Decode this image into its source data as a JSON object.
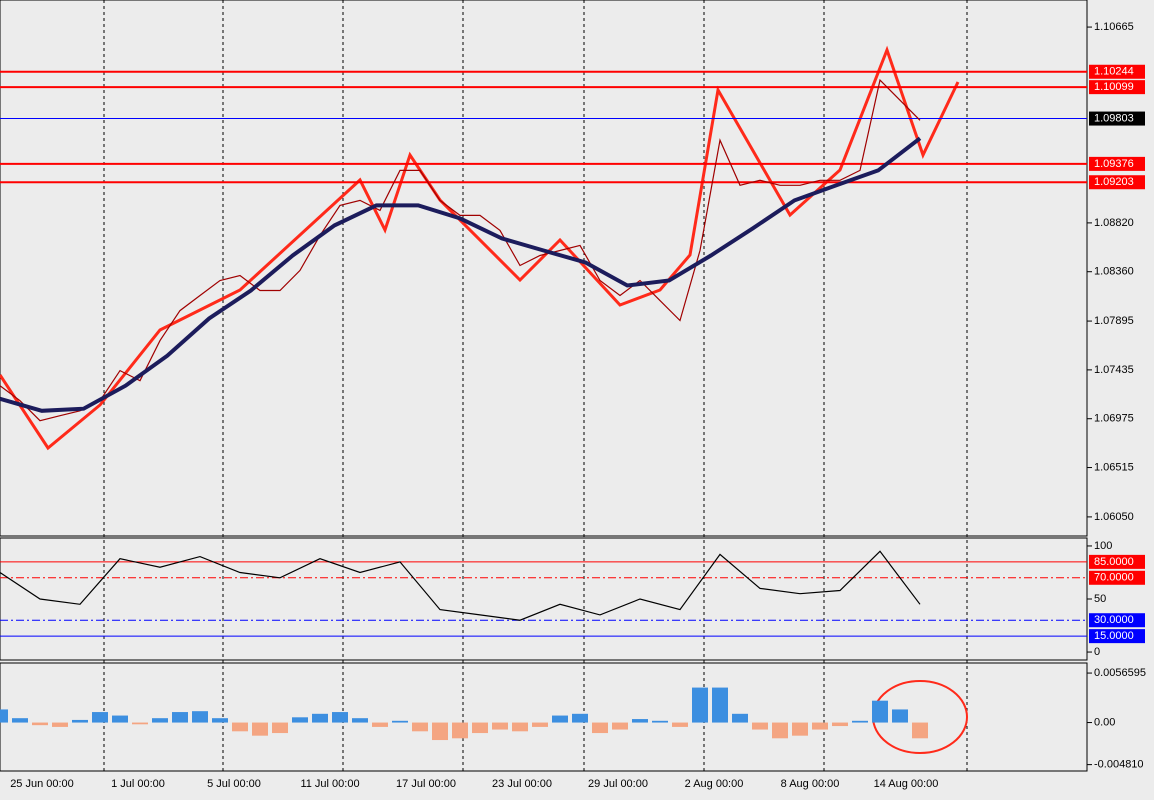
{
  "chart_data": [
    {
      "type": "line",
      "ylim": [
        1.0587,
        1.1092
      ],
      "yticks": [
        1.10665,
        {
          "value": 1.0882,
          "label": "1.08820"
        },
        {
          "value": 1.0836,
          "label": "1.08360"
        },
        1.07895,
        1.07435,
        1.06975,
        1.06515,
        {
          "value": 1.0605,
          "label": "1.06050"
        }
      ],
      "x_labels": [
        "25 Jun 00:00",
        "1 Jul 00:00",
        "5 Jul 00:00",
        "11 Jul 00:00",
        "17 Jul 00:00",
        "23 Jul 00:00",
        "29 Jul 00:00",
        "2 Aug 00:00",
        "8 Aug 00:00",
        "14 Aug 00:00"
      ],
      "levels": [
        {
          "value": 1.10244,
          "color": "#ff0000"
        },
        {
          "value": 1.10099,
          "color": "#ff0000"
        },
        {
          "value": 1.09803,
          "color": "#0000ff"
        },
        {
          "value": 1.09376,
          "color": "#ff0000"
        },
        {
          "value": 1.09203,
          "color": "#ff0000"
        }
      ],
      "series": [
        {
          "color": "#a00000",
          "values": [
            1.07286,
            1.07145,
            1.06956,
            1.07003,
            1.0705,
            1.07145,
            1.07428,
            1.07333,
            1.07711,
            1.07994,
            1.08136,
            1.08277,
            1.08324,
            1.08183,
            1.08183,
            1.08372,
            1.08702,
            1.08985,
            1.09032,
            1.08938,
            1.09315,
            1.09315,
            1.09032,
            1.08891,
            1.08891,
            1.08749,
            1.08419,
            1.08513,
            1.0856,
            1.08608,
            1.08277,
            1.08136,
            1.08277,
            1.08088,
            1.079,
            1.0856,
            1.09599,
            1.09174,
            1.09221,
            1.09174,
            1.09174,
            1.09221,
            1.09221,
            1.09315,
            1.10165,
            1.09976,
            1.09787
          ]
        },
        {
          "color": "#1c1c5c",
          "values": [
            1.07163,
            1.0705,
            1.07069,
            1.07286,
            1.07569,
            1.07919,
            1.08183,
            1.08513,
            1.08796,
            1.08985,
            1.08985,
            1.08862,
            1.08674,
            1.0856,
            1.08447,
            1.0823,
            1.08277,
            1.08513,
            1.08768,
            1.09032,
            1.09174,
            1.09315,
            1.09617
          ]
        }
      ]
    },
    {
      "type": "line",
      "ylim": [
        -7.5,
        107.5
      ],
      "yticks": [
        100,
        50,
        0
      ],
      "levels": [
        {
          "value": 85,
          "label": "85.0000",
          "color": "#ff0000"
        },
        {
          "value": 70,
          "label": "70.0000",
          "color": "#ff0000"
        },
        {
          "value": 30,
          "label": "30.0000",
          "color": "#0000ff"
        },
        {
          "value": 15,
          "label": "15.0000",
          "color": "#0000ff"
        }
      ],
      "series": [
        {
          "color": "#000000",
          "values": [
            75,
            50,
            45,
            88,
            80,
            90,
            75,
            70,
            88,
            75,
            85,
            40,
            35,
            30,
            45,
            35,
            50,
            40,
            92,
            60,
            55,
            58,
            95,
            45
          ]
        }
      ]
    },
    {
      "type": "bar",
      "ylim": [
        -0.00554,
        0.00681
      ],
      "yticks": [
        0.0056595,
        {
          "value": 0,
          "label": "0.00"
        },
        {
          "value": -0.00481,
          "label": "-0.004810"
        }
      ],
      "positive_color": "#3d8fe0",
      "negative_color": "#f4a582",
      "values": [
        0.0015,
        0.0005,
        -0.0003,
        -0.0005,
        0.0003,
        0.0012,
        0.0008,
        -0.0002,
        0.0005,
        0.0012,
        0.0013,
        0.0005,
        -0.001,
        -0.0015,
        -0.0012,
        0.0006,
        0.001,
        0.0012,
        0.0005,
        -0.0005,
        0.0002,
        -0.001,
        -0.002,
        -0.0018,
        -0.0012,
        -0.0008,
        -0.001,
        -0.0005,
        0.0008,
        0.001,
        -0.0012,
        -0.0008,
        0.0004,
        0.0002,
        -0.0005,
        0.004,
        0.004,
        0.001,
        -0.0008,
        -0.0018,
        -0.0015,
        -0.0008,
        -0.0004,
        0.0002,
        0.0025,
        0.0015,
        -0.0018
      ]
    }
  ]
}
